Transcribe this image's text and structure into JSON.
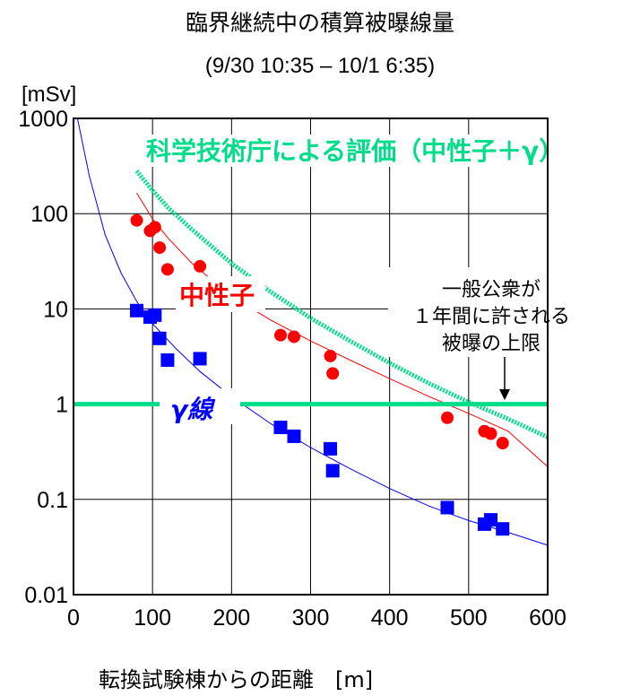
{
  "chart_data": {
    "type": "scatter",
    "title": "臨界継続中の積算被曝線量",
    "subtitle": "(9/30 10:35 – 10/1 6:35)",
    "ylabel": "[mSv]",
    "xlabel": "転換試験棟からの距離　[m]",
    "xlim": [
      0,
      600
    ],
    "ylim": [
      0.01,
      1000
    ],
    "yscale": "log",
    "grid": true,
    "x_ticks": [
      "0",
      "100",
      "200",
      "300",
      "400",
      "500",
      "600"
    ],
    "y_ticks": [
      "0.01",
      "0.1",
      "1",
      "10",
      "100",
      "1000"
    ],
    "series": [
      {
        "name": "中性子",
        "color": "#ff0000",
        "marker": "circle",
        "points": [
          [
            80,
            85
          ],
          [
            97,
            66
          ],
          [
            103,
            72
          ],
          [
            109,
            44
          ],
          [
            119,
            26
          ],
          [
            160,
            28
          ],
          [
            262,
            5.3
          ],
          [
            279,
            5.1
          ],
          [
            325,
            3.2
          ],
          [
            328,
            2.1
          ],
          [
            473,
            0.72
          ],
          [
            520,
            0.52
          ],
          [
            528,
            0.49
          ],
          [
            543,
            0.39
          ]
        ],
        "fit_curve": [
          [
            80,
            165
          ],
          [
            100,
            88
          ],
          [
            120,
            55
          ],
          [
            150,
            30
          ],
          [
            200,
            13.5
          ],
          [
            250,
            7.6
          ],
          [
            300,
            4.6
          ],
          [
            350,
            2.9
          ],
          [
            400,
            1.85
          ],
          [
            450,
            1.2
          ],
          [
            500,
            0.8
          ],
          [
            550,
            0.52
          ],
          [
            600,
            0.22
          ]
        ]
      },
      {
        "name": "γ線",
        "color": "#0000ff",
        "marker": "square",
        "points": [
          [
            80,
            9.6
          ],
          [
            97,
            8.2
          ],
          [
            103,
            8.6
          ],
          [
            109,
            4.9
          ],
          [
            119,
            2.9
          ],
          [
            160,
            3.0
          ],
          [
            262,
            0.57
          ],
          [
            279,
            0.46
          ],
          [
            325,
            0.34
          ],
          [
            328,
            0.2
          ],
          [
            473,
            0.082
          ],
          [
            520,
            0.055
          ],
          [
            528,
            0.061
          ],
          [
            543,
            0.049
          ]
        ],
        "fit_curve": [
          [
            5,
            1000
          ],
          [
            20,
            250
          ],
          [
            40,
            60
          ],
          [
            60,
            24
          ],
          [
            80,
            12
          ],
          [
            100,
            7
          ],
          [
            130,
            3.8
          ],
          [
            160,
            2.2
          ],
          [
            200,
            1.2
          ],
          [
            250,
            0.62
          ],
          [
            300,
            0.35
          ],
          [
            350,
            0.21
          ],
          [
            400,
            0.13
          ],
          [
            450,
            0.085
          ],
          [
            500,
            0.06
          ],
          [
            550,
            0.045
          ],
          [
            600,
            0.033
          ]
        ]
      },
      {
        "name": "科学技術庁による評価（中性子＋γ）",
        "color": "#00dd88",
        "marker": "line",
        "points": [
          [
            80,
            280
          ],
          [
            100,
            175
          ],
          [
            120,
            115
          ],
          [
            150,
            68
          ],
          [
            200,
            30
          ],
          [
            250,
            15
          ],
          [
            300,
            8
          ],
          [
            350,
            4.6
          ],
          [
            400,
            2.7
          ],
          [
            450,
            1.65
          ],
          [
            500,
            1.05
          ],
          [
            550,
            0.7
          ],
          [
            600,
            0.45
          ]
        ]
      }
    ],
    "reference_line": {
      "y": 1,
      "color": "#00dd88",
      "label": "一般公衆が\n１年間に許される\n被曝の上限"
    },
    "annotations": {
      "neutron": "中性子",
      "gamma": "γ線",
      "eval": "科学技術庁による評価（中性子＋γ）",
      "limit_line1": "一般公衆が",
      "limit_line2": "１年間に許される",
      "limit_line3": "被曝の上限"
    }
  }
}
